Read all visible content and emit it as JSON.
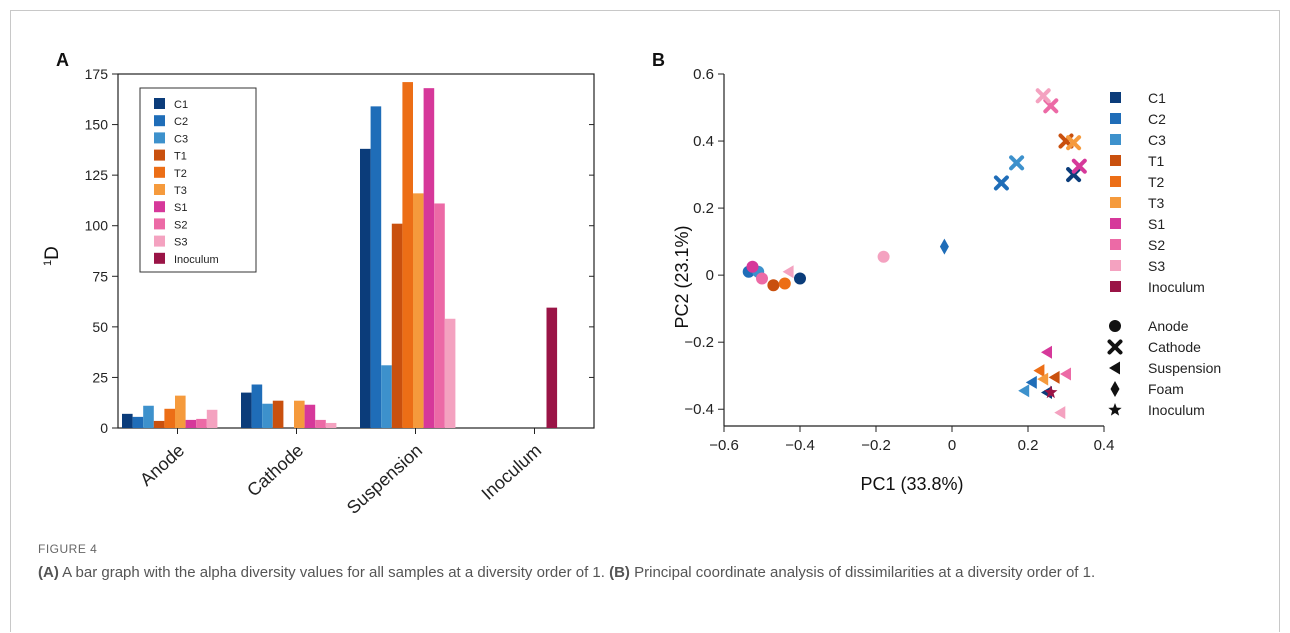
{
  "caption": {
    "figure_label": "FIGURE 4",
    "part_a_letter": "(A)",
    "part_a_text": " A bar graph with the alpha diversity values for all samples at a diversity order of 1. ",
    "part_b_letter": "(B)",
    "part_b_text": " Principal coordinate analysis of dissimilarities at a diversity order of 1."
  },
  "series_colors": {
    "C1": "#0b3c7a",
    "C2": "#1f6db8",
    "C3": "#3d91cc",
    "T1": "#c9500e",
    "T2": "#ec6e16",
    "T3": "#f59a3c",
    "S1": "#d6389a",
    "S2": "#ec6aa6",
    "S3": "#f4a2c0",
    "Inoculum": "#9a1446"
  },
  "chart_data": [
    {
      "type": "bar",
      "panel_label": "A",
      "title": "",
      "ylabel_sup": "1",
      "ylabel": "D",
      "xlabel": "",
      "ylim": [
        0,
        175
      ],
      "yticks": [
        0,
        25,
        50,
        75,
        100,
        125,
        150,
        175
      ],
      "categories": [
        "Anode",
        "Cathode",
        "Suspension",
        "Inoculum"
      ],
      "legend_placement": "top-left",
      "series": [
        {
          "name": "C1",
          "values": [
            7,
            17.5,
            138,
            null
          ]
        },
        {
          "name": "C2",
          "values": [
            5.5,
            21.5,
            159,
            null
          ]
        },
        {
          "name": "C3",
          "values": [
            11,
            12,
            31,
            null
          ]
        },
        {
          "name": "T1",
          "values": [
            3.5,
            13.5,
            101,
            null
          ]
        },
        {
          "name": "T2",
          "values": [
            9.5,
            null,
            171,
            null
          ]
        },
        {
          "name": "T3",
          "values": [
            16,
            13.5,
            116,
            null
          ]
        },
        {
          "name": "S1",
          "values": [
            4,
            11.5,
            168,
            null
          ]
        },
        {
          "name": "S2",
          "values": [
            4.5,
            4,
            111,
            null
          ]
        },
        {
          "name": "S3",
          "values": [
            9,
            2.5,
            54,
            null
          ]
        },
        {
          "name": "Inoculum",
          "values": [
            null,
            null,
            null,
            59.5
          ]
        }
      ]
    },
    {
      "type": "scatter",
      "panel_label": "B",
      "title": "",
      "xlabel": "PC1 (33.8%)",
      "ylabel": "PC2 (23.1%)",
      "xlim": [
        -0.6,
        0.4
      ],
      "ylim": [
        -0.45,
        0.6
      ],
      "xticks": [
        -0.6,
        -0.4,
        -0.2,
        0,
        0.2,
        0.4
      ],
      "xtick_labels": [
        "−0.6",
        "−0.4",
        "−0.2",
        "0",
        "0.2",
        "0.4"
      ],
      "yticks": [
        -0.4,
        -0.2,
        0,
        0.2,
        0.4,
        0.6
      ],
      "ytick_labels": [
        "−0.4",
        "−0.2",
        "0",
        "0.2",
        "0.4",
        "0.6"
      ],
      "legend_placement": "right",
      "color_legend": [
        "C1",
        "C2",
        "C3",
        "T1",
        "T2",
        "T3",
        "S1",
        "S2",
        "S3",
        "Inoculum"
      ],
      "shape_legend": [
        {
          "name": "Anode",
          "shape": "circle"
        },
        {
          "name": "Cathode",
          "shape": "cross"
        },
        {
          "name": "Suspension",
          "shape": "triangle-left"
        },
        {
          "name": "Foam",
          "shape": "diamond"
        },
        {
          "name": "Inoculum",
          "shape": "star"
        }
      ],
      "points": [
        {
          "sample": "C1",
          "shape": "circle",
          "x": -0.4,
          "y": -0.01
        },
        {
          "sample": "C2",
          "shape": "circle",
          "x": -0.535,
          "y": 0.01
        },
        {
          "sample": "C3",
          "shape": "circle",
          "x": -0.51,
          "y": 0.01
        },
        {
          "sample": "T1",
          "shape": "circle",
          "x": -0.47,
          "y": -0.03
        },
        {
          "sample": "T2",
          "shape": "circle",
          "x": -0.44,
          "y": -0.025
        },
        {
          "sample": "S1",
          "shape": "circle",
          "x": -0.525,
          "y": 0.025
        },
        {
          "sample": "S2",
          "shape": "circle",
          "x": -0.5,
          "y": -0.01
        },
        {
          "sample": "S3",
          "shape": "circle",
          "x": -0.18,
          "y": 0.055
        },
        {
          "sample": "C1",
          "shape": "cross",
          "x": 0.32,
          "y": 0.3
        },
        {
          "sample": "C2",
          "shape": "cross",
          "x": 0.13,
          "y": 0.275
        },
        {
          "sample": "C3",
          "shape": "cross",
          "x": 0.17,
          "y": 0.335
        },
        {
          "sample": "T1",
          "shape": "cross",
          "x": 0.3,
          "y": 0.4
        },
        {
          "sample": "T3",
          "shape": "cross",
          "x": 0.32,
          "y": 0.395
        },
        {
          "sample": "S1",
          "shape": "cross",
          "x": 0.335,
          "y": 0.325
        },
        {
          "sample": "S2",
          "shape": "cross",
          "x": 0.26,
          "y": 0.505
        },
        {
          "sample": "S3",
          "shape": "cross",
          "x": 0.24,
          "y": 0.535
        },
        {
          "sample": "C1",
          "shape": "triangle-left",
          "x": 0.25,
          "y": -0.35
        },
        {
          "sample": "C2",
          "shape": "triangle-left",
          "x": 0.21,
          "y": -0.32
        },
        {
          "sample": "C3",
          "shape": "triangle-left",
          "x": 0.19,
          "y": -0.345
        },
        {
          "sample": "T1",
          "shape": "triangle-left",
          "x": 0.27,
          "y": -0.305
        },
        {
          "sample": "T2",
          "shape": "triangle-left",
          "x": 0.23,
          "y": -0.285
        },
        {
          "sample": "T3",
          "shape": "triangle-left",
          "x": 0.24,
          "y": -0.31
        },
        {
          "sample": "S1",
          "shape": "triangle-left",
          "x": 0.25,
          "y": -0.23
        },
        {
          "sample": "S2",
          "shape": "triangle-left",
          "x": 0.3,
          "y": -0.295
        },
        {
          "sample": "S3",
          "shape": "triangle-left",
          "x": 0.285,
          "y": -0.41
        },
        {
          "sample": "S3",
          "shape": "triangle-left",
          "x": -0.43,
          "y": 0.01
        },
        {
          "sample": "C2",
          "shape": "diamond",
          "x": -0.02,
          "y": 0.085
        },
        {
          "sample": "Inoculum",
          "shape": "star",
          "x": 0.26,
          "y": -0.35
        }
      ]
    }
  ]
}
